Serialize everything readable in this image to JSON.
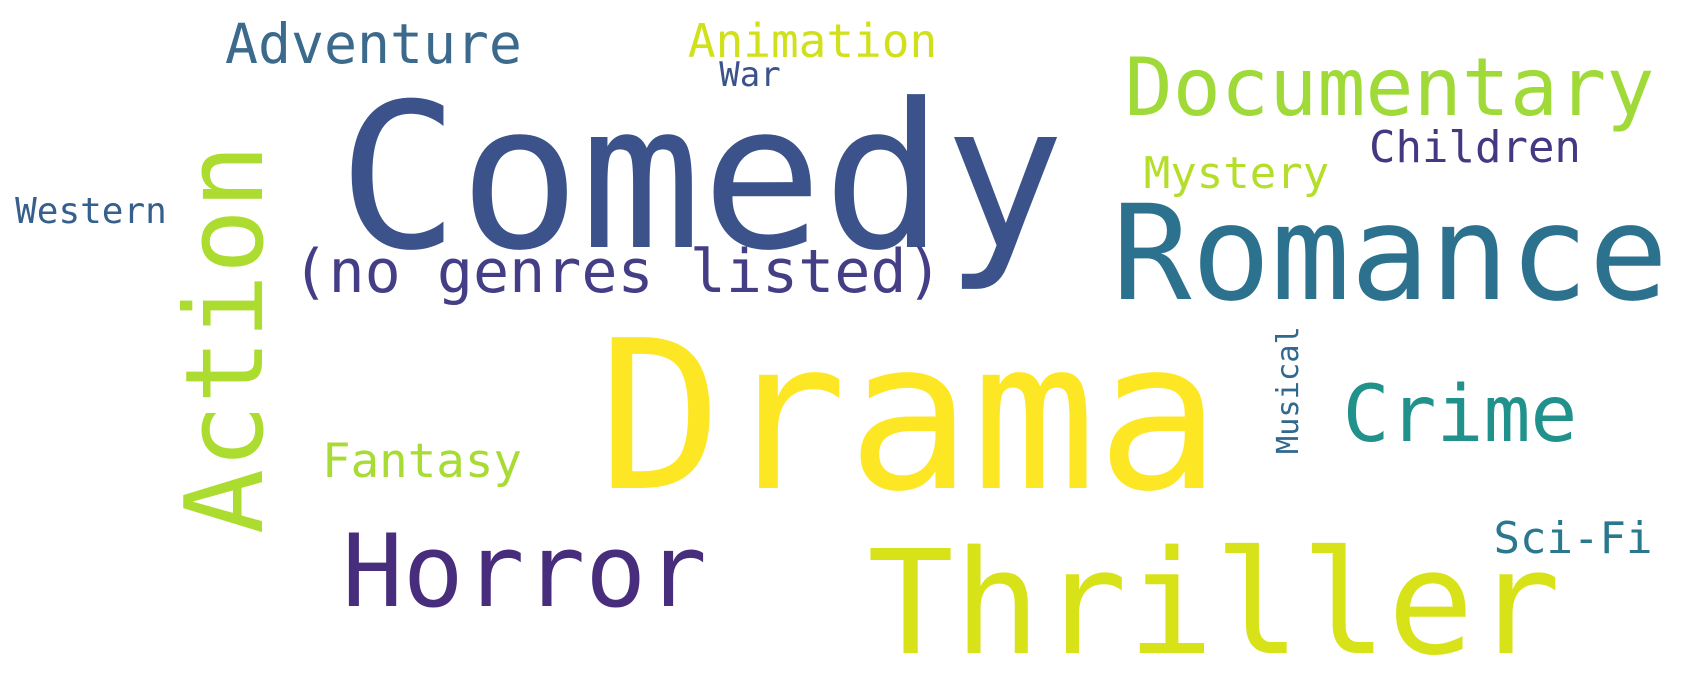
{
  "word_cloud": {
    "words": [
      {
        "id": "drama",
        "text": "Drama",
        "color": "#fde725"
      },
      {
        "id": "comedy",
        "text": "Comedy",
        "color": "#3b528b"
      },
      {
        "id": "thriller",
        "text": "Thriller",
        "color": "#d8e219"
      },
      {
        "id": "romance",
        "text": "Romance",
        "color": "#2c728e"
      },
      {
        "id": "action",
        "text": "Action",
        "color": "#addc30"
      },
      {
        "id": "horror",
        "text": "Horror",
        "color": "#472d7b"
      },
      {
        "id": "documentary",
        "text": "Documentary",
        "color": "#a0da39"
      },
      {
        "id": "crime",
        "text": "Crime",
        "color": "#21918c"
      },
      {
        "id": "no-genres-listed",
        "text": "(no genres listed)",
        "color": "#433e85"
      },
      {
        "id": "adventure",
        "text": "Adventure",
        "color": "#3b6a8c"
      },
      {
        "id": "fantasy",
        "text": "Fantasy",
        "color": "#a8db34"
      },
      {
        "id": "animation",
        "text": "Animation",
        "color": "#d0e11c"
      },
      {
        "id": "children",
        "text": "Children",
        "color": "#453781"
      },
      {
        "id": "mystery",
        "text": "Mystery",
        "color": "#b5de2b"
      },
      {
        "id": "sci-fi",
        "text": "Sci-Fi",
        "color": "#2a788e"
      },
      {
        "id": "war",
        "text": "War",
        "color": "#3b528b"
      },
      {
        "id": "western",
        "text": "Western",
        "color": "#35608d"
      },
      {
        "id": "musical",
        "text": "Musical",
        "color": "#31688e"
      }
    ]
  }
}
